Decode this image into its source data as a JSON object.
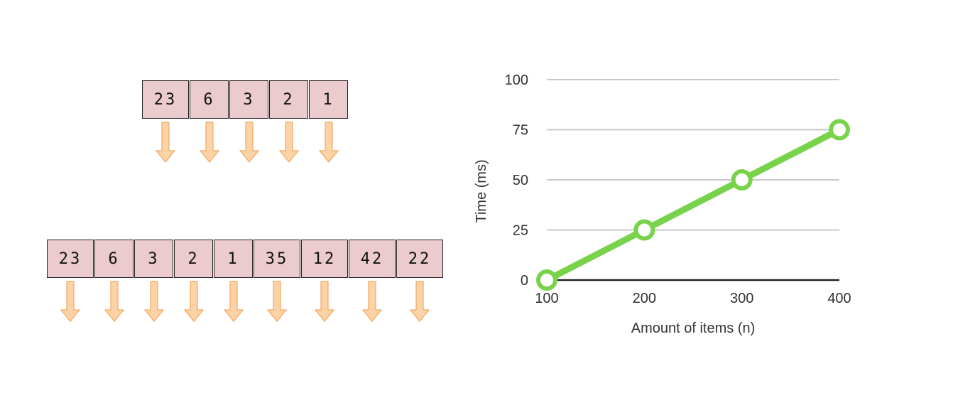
{
  "arrays": {
    "small": [
      {
        "value": "23",
        "w": 66
      },
      {
        "value": "6",
        "w": 55
      },
      {
        "value": "3",
        "w": 55
      },
      {
        "value": "2",
        "w": 55
      },
      {
        "value": "1",
        "w": 55
      }
    ],
    "large": [
      {
        "value": "23",
        "w": 66
      },
      {
        "value": "6",
        "w": 55
      },
      {
        "value": "3",
        "w": 55
      },
      {
        "value": "2",
        "w": 55
      },
      {
        "value": "1",
        "w": 55
      },
      {
        "value": "35",
        "w": 66
      },
      {
        "value": "12",
        "w": 66
      },
      {
        "value": "42",
        "w": 66
      },
      {
        "value": "22",
        "w": 66
      }
    ],
    "cell_color": "#ebcbcd",
    "arrow_fill": "#fcd3a6",
    "arrow_stroke": "#f2a760"
  },
  "chart_data": {
    "type": "line",
    "x": [
      100,
      200,
      300,
      400
    ],
    "y": [
      0,
      25,
      50,
      75
    ],
    "xlabel": "Amount of items (n)",
    "ylabel": "Time (ms)",
    "ylim": [
      0,
      100
    ],
    "y_ticks": [
      "0",
      "25",
      "50",
      "75",
      "100"
    ],
    "x_ticks": [
      "100",
      "200",
      "300",
      "400"
    ],
    "grid": true,
    "line_color": "#78d34b",
    "grid_color": "#c8c8c8",
    "axis_color": "#222222"
  }
}
